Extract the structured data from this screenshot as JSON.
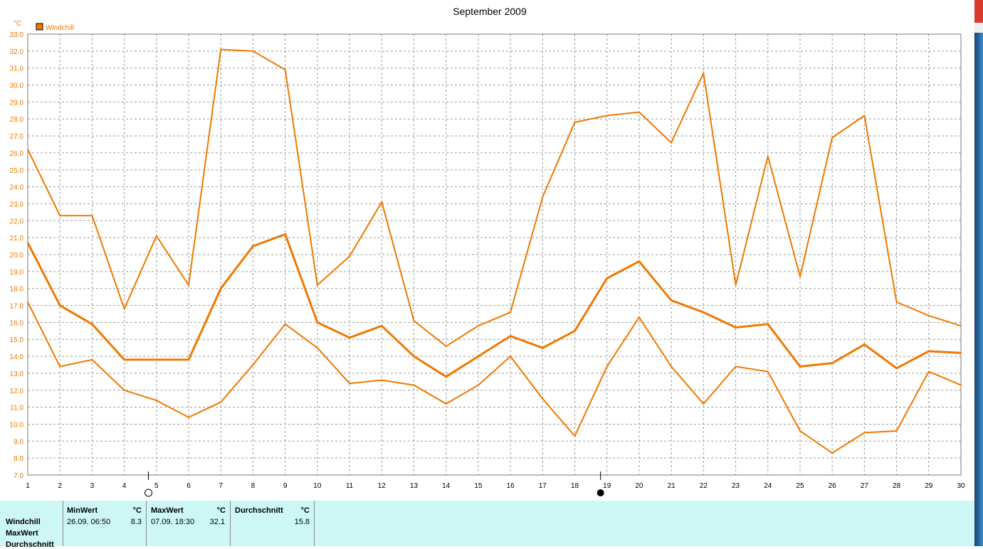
{
  "chart_data": {
    "type": "line",
    "title": "September 2009",
    "y_unit": "°C",
    "legend": [
      {
        "label": "Windchill",
        "color": "#f07800"
      }
    ],
    "legend_position": "top-left",
    "grid": true,
    "ylim": [
      7.0,
      33.0
    ],
    "y_ticks": [
      "7.0",
      "8.0",
      "9.0",
      "10.0",
      "11.0",
      "12.0",
      "13.0",
      "14.0",
      "15.0",
      "16.0",
      "17.0",
      "18.0",
      "19.0",
      "20.0",
      "21.0",
      "22.0",
      "23.0",
      "24.0",
      "25.0",
      "26.0",
      "27.0",
      "28.0",
      "29.0",
      "30.0",
      "31.0",
      "32.0",
      "33.0"
    ],
    "x": [
      1,
      2,
      3,
      4,
      5,
      6,
      7,
      8,
      9,
      10,
      11,
      12,
      13,
      14,
      15,
      16,
      17,
      18,
      19,
      20,
      21,
      22,
      23,
      24,
      25,
      26,
      27,
      28,
      29,
      30
    ],
    "series": [
      {
        "values": [
          26.2,
          22.3,
          22.3,
          16.8,
          21.1,
          18.2,
          32.1,
          32.0,
          30.9,
          18.2,
          19.9,
          23.1,
          16.1,
          14.6,
          15.8,
          16.6,
          23.4,
          27.8,
          28.2,
          28.4,
          26.6,
          30.7,
          18.2,
          25.8,
          18.7,
          26.9,
          28.2,
          17.2,
          16.4,
          15.8
        ],
        "color": "#f07800",
        "stroke": 2
      },
      {
        "values": [
          20.7,
          17.0,
          15.9,
          13.8,
          13.8,
          13.8,
          18.0,
          20.5,
          21.2,
          16.0,
          15.1,
          15.8,
          14.0,
          12.8,
          14.0,
          15.2,
          14.5,
          15.5,
          18.6,
          19.6,
          17.3,
          16.6,
          15.7,
          15.9,
          13.4,
          13.6,
          14.7,
          13.3,
          14.3,
          14.2
        ],
        "color": "#f07800",
        "stroke": 3
      },
      {
        "values": [
          17.2,
          13.4,
          13.8,
          12.0,
          11.4,
          10.4,
          11.3,
          13.5,
          15.9,
          14.5,
          12.4,
          12.6,
          12.3,
          11.2,
          12.3,
          14.0,
          11.5,
          9.3,
          13.4,
          16.3,
          13.4,
          11.2,
          13.4,
          13.1,
          9.6,
          8.3,
          9.5,
          9.6,
          13.1,
          12.3
        ],
        "color": "#f07800",
        "stroke": 2
      }
    ],
    "moon_markers": [
      {
        "day": 4.75,
        "phase": "full-moon"
      },
      {
        "day": 18.8,
        "phase": "new-moon"
      }
    ]
  },
  "stats": {
    "rows": [
      "Windchill",
      "MaxWert",
      "Durchschnitt"
    ],
    "min": {
      "header": "MinWert",
      "unit": "°C",
      "time": "26.09.  06:50",
      "value": "8.3"
    },
    "max": {
      "header": "MaxWert",
      "unit": "°C",
      "time": "07.09.  18:30",
      "value": "32.1"
    },
    "avg": {
      "header": "Durchschnitt",
      "unit": "°C",
      "value": "15.8"
    }
  }
}
